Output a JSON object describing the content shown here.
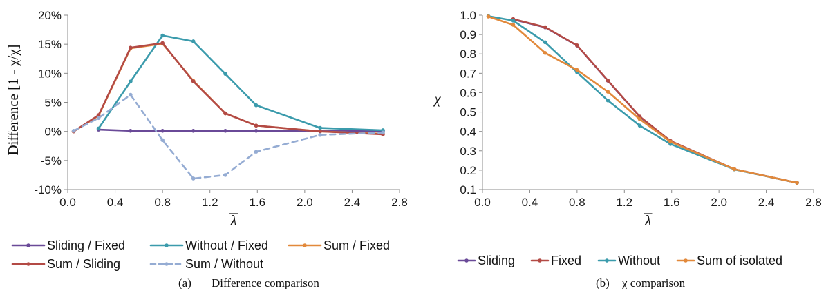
{
  "chart_data": [
    {
      "type": "line",
      "caption_label": "(a)",
      "caption_text": "Difference comparison",
      "xlabel": "λ",
      "ylabel": "Difference  [1 - χ/χ]",
      "xlim": [
        0,
        2.8
      ],
      "ylim": [
        -0.1,
        0.2
      ],
      "xticks": [
        "0.0",
        "0.4",
        "0.8",
        "1.2",
        "1.6",
        "2.0",
        "2.4",
        "2.8"
      ],
      "yticks": [
        "-10%",
        "-5%",
        "0%",
        "5%",
        "10%",
        "15%",
        "20%"
      ],
      "legend_position": "bottom",
      "series": [
        {
          "name": "Sliding / Fixed",
          "color": "#6a4a98",
          "dashed": false,
          "x": [
            0.26,
            0.53,
            0.8,
            1.06,
            1.33,
            1.59,
            2.13,
            2.66
          ],
          "y": [
            0.003,
            0.001,
            0.001,
            0.001,
            0.001,
            0.001,
            0.001,
            0.001
          ]
        },
        {
          "name": "Without / Fixed",
          "color": "#3b9bac",
          "dashed": false,
          "x": [
            0.26,
            0.53,
            0.8,
            1.06,
            1.33,
            1.59,
            2.13,
            2.66
          ],
          "y": [
            0.005,
            0.086,
            0.165,
            0.155,
            0.099,
            0.045,
            0.006,
            0.002
          ]
        },
        {
          "name": "Sum / Fixed",
          "color": "#e2893b",
          "dashed": false,
          "x": [
            0.05,
            0.26,
            0.53,
            0.8,
            1.06,
            1.33,
            1.59,
            2.13,
            2.66
          ],
          "y": [
            0.0,
            0.027,
            0.143,
            0.151,
            0.087,
            0.031,
            0.01,
            0.0,
            -0.004
          ]
        },
        {
          "name": "Sum / Sliding",
          "color": "#b34a45",
          "dashed": false,
          "x": [
            0.05,
            0.26,
            0.53,
            0.8,
            1.06,
            1.33,
            1.59,
            2.13,
            2.66
          ],
          "y": [
            0.0,
            0.028,
            0.144,
            0.152,
            0.086,
            0.031,
            0.01,
            0.0,
            -0.005
          ]
        },
        {
          "name": "Sum / Without",
          "color": "#95acd3",
          "dashed": true,
          "x": [
            0.05,
            0.26,
            0.53,
            0.8,
            1.06,
            1.33,
            1.59,
            2.13,
            2.66
          ],
          "y": [
            0.001,
            0.023,
            0.063,
            -0.015,
            -0.081,
            -0.075,
            -0.035,
            -0.006,
            -0.002
          ]
        }
      ]
    },
    {
      "type": "line",
      "caption_label": "(b)",
      "caption_text": "χ comparison",
      "xlabel": "λ",
      "ylabel": "χ",
      "xlim": [
        0,
        2.8
      ],
      "ylim": [
        0.1,
        1.0
      ],
      "xticks": [
        "0.0",
        "0.4",
        "0.8",
        "1.2",
        "1.6",
        "2.0",
        "2.4",
        "2.8"
      ],
      "yticks": [
        "0.1",
        "0.2",
        "0.3",
        "0.4",
        "0.5",
        "0.6",
        "0.7",
        "0.8",
        "0.9",
        "1.0"
      ],
      "legend_position": "bottom",
      "series": [
        {
          "name": "Sliding",
          "color": "#6a4a98",
          "dashed": false,
          "x": [
            0.26,
            0.53,
            0.8,
            1.06,
            1.33,
            1.59,
            2.13,
            2.66
          ],
          "y": [
            0.978,
            0.937,
            0.843,
            0.662,
            0.476,
            0.35,
            0.205,
            0.135
          ]
        },
        {
          "name": "Fixed",
          "color": "#b34a45",
          "dashed": false,
          "x": [
            0.26,
            0.53,
            0.8,
            1.06,
            1.33,
            1.59,
            2.13,
            2.66
          ],
          "y": [
            0.98,
            0.938,
            0.844,
            0.663,
            0.477,
            0.351,
            0.205,
            0.135
          ]
        },
        {
          "name": "Without",
          "color": "#3b9bac",
          "dashed": false,
          "x": [
            0.05,
            0.26,
            0.53,
            0.8,
            1.06,
            1.33,
            1.59,
            2.13,
            2.66
          ],
          "y": [
            0.995,
            0.972,
            0.86,
            0.705,
            0.56,
            0.43,
            0.335,
            0.204,
            0.135
          ]
        },
        {
          "name": "Sum of isolated",
          "color": "#e2893b",
          "dashed": false,
          "x": [
            0.05,
            0.26,
            0.53,
            0.8,
            1.06,
            1.33,
            1.59,
            2.13,
            2.66
          ],
          "y": [
            0.993,
            0.95,
            0.805,
            0.717,
            0.605,
            0.463,
            0.347,
            0.205,
            0.135
          ]
        }
      ]
    }
  ]
}
